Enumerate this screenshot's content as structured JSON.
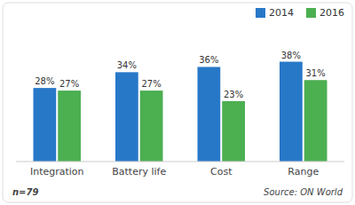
{
  "chart_data": {
    "type": "bar",
    "categories": [
      "Integration",
      "Battery life",
      "Cost",
      "Range"
    ],
    "series": [
      {
        "name": "2014",
        "color": "#2878C8",
        "values": [
          28,
          34,
          36,
          38
        ],
        "value_labels": [
          "28%",
          "34%",
          "36%",
          "38%"
        ]
      },
      {
        "name": "2016",
        "color": "#4CAF50",
        "values": [
          27,
          27,
          23,
          31
        ],
        "value_labels": [
          "27%",
          "27%",
          "23%",
          "31%"
        ]
      }
    ],
    "ylim": [
      0,
      50
    ],
    "grid": false,
    "legend": "upper right",
    "data_labels": true,
    "tick_labels": "x",
    "annotations": [
      "n=79",
      "Source: ON World"
    ]
  }
}
